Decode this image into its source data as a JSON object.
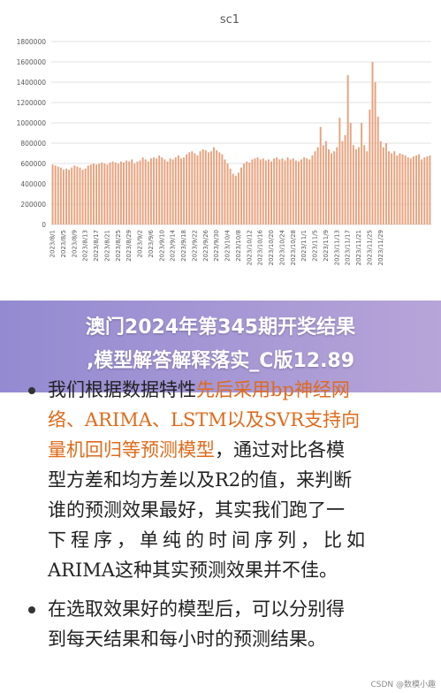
{
  "banner": {
    "title_line1": "澳门2024年第345期开奖结果",
    "title_line2": ",模型解答解释落实_C版12.89"
  },
  "document": {
    "bullet1": {
      "line1_a": "我们根据数据特性",
      "line1_b": "先后采用bp神经网",
      "line2": "络、ARIMA、LSTM以及SVR支持向",
      "line3_a": "量机回归等预测模型",
      "line3_b": "，通过对比各模",
      "line4": "型方差和均方差以及R2的值，来判断",
      "line5": "谁的预测效果最好，其实我们跑了一",
      "line6": "下程序，单纯的时间序列，比如",
      "line7": "ARIMA这种其实预测效果并不佳。"
    },
    "bullet2": {
      "line1": "在选取效果好的模型后，可以分别得",
      "line2": "到每天结果和每小时的预测结果。"
    },
    "watermark": "CSDN @数模小趣"
  },
  "colors": {
    "bar": "#e8a17c",
    "grid": "#d9d9d9",
    "axis_text": "#595959",
    "banner_start": "#8e84cf",
    "banner_end": "#b39fd6",
    "highlight_text": "#e06a1a"
  },
  "chart_data": {
    "type": "bar",
    "title": "sc1",
    "ylim": [
      0,
      1800000
    ],
    "yticks": [
      "0",
      "200000",
      "400000",
      "600000",
      "800000",
      "1000000",
      "1200000",
      "1400000",
      "1600000",
      "1800000"
    ],
    "grid": true,
    "legend": "none",
    "x_tick_labels": [
      "2023/8/1",
      "2023/8/5",
      "2023/8/9",
      "2023/8/13",
      "2023/8/17",
      "2023/8/21",
      "2023/8/25",
      "2023/8/29",
      "2023/9/2",
      "2023/9/6",
      "2023/9/10",
      "2023/9/14",
      "2023/9/18",
      "2023/9/22",
      "2023/9/26",
      "2023/9/30",
      "2023/10/4",
      "2023/10/8",
      "2023/10/12",
      "2023/10/16",
      "2023/10/20",
      "2023/10/24",
      "2023/10/28",
      "2023/11/1",
      "2023/11/5",
      "2023/11/9",
      "2023/11/13",
      "2023/11/17",
      "2023/11/21",
      "2023/11/25",
      "2023/11/29"
    ],
    "values": [
      590000,
      580000,
      570000,
      560000,
      540000,
      550000,
      540000,
      560000,
      580000,
      570000,
      560000,
      540000,
      550000,
      580000,
      590000,
      600000,
      590000,
      600000,
      610000,
      600000,
      590000,
      610000,
      620000,
      610000,
      600000,
      620000,
      610000,
      630000,
      620000,
      640000,
      600000,
      620000,
      630000,
      660000,
      640000,
      620000,
      650000,
      660000,
      650000,
      680000,
      660000,
      640000,
      620000,
      650000,
      640000,
      660000,
      680000,
      650000,
      660000,
      690000,
      710000,
      720000,
      700000,
      680000,
      720000,
      740000,
      730000,
      710000,
      720000,
      760000,
      730000,
      710000,
      690000,
      640000,
      600000,
      550000,
      500000,
      480000,
      510000,
      560000,
      600000,
      620000,
      610000,
      640000,
      650000,
      660000,
      640000,
      650000,
      630000,
      640000,
      620000,
      650000,
      660000,
      640000,
      650000,
      630000,
      660000,
      640000,
      650000,
      630000,
      620000,
      640000,
      660000,
      650000,
      640000,
      680000,
      720000,
      760000,
      960000,
      780000,
      820000,
      740000,
      700000,
      720000,
      760000,
      1050000,
      820000,
      880000,
      1470000,
      1000000,
      780000,
      740000,
      760000,
      1000000,
      780000,
      720000,
      1130000,
      1600000,
      1400000,
      1060000,
      820000,
      760000,
      800000,
      720000,
      700000,
      720000,
      680000,
      700000,
      690000,
      680000,
      660000,
      650000,
      670000,
      680000,
      690000,
      640000,
      660000,
      670000,
      680000
    ]
  }
}
